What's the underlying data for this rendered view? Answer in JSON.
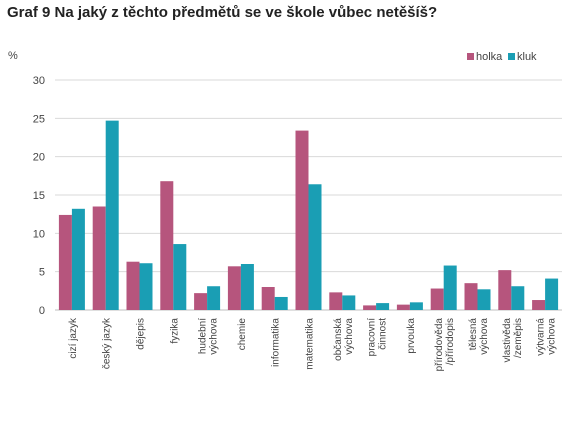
{
  "title": "Graf 9 Na jaký z těchto předmětů se ve škole vůbec netěšíš?",
  "colors": {
    "holka": "#b6557d",
    "kluk": "#1a9eb4",
    "grid": "#d9d9d9",
    "axis": "#bfbfbf"
  },
  "chart_data": {
    "type": "bar",
    "title": "Graf 9 Na jaký z těchto předmětů se ve škole vůbec netěšíš?",
    "ylabel": "%",
    "xlabel": "",
    "ylim": [
      0,
      30
    ],
    "yticks": [
      0,
      5,
      10,
      15,
      20,
      25,
      30
    ],
    "grid": true,
    "legend_position": "top-right",
    "categories": [
      [
        "cizí jazyk"
      ],
      [
        "český jazyk"
      ],
      [
        "dějepis"
      ],
      [
        "fyzika"
      ],
      [
        "hudební",
        "výchova"
      ],
      [
        "chemie"
      ],
      [
        "informatika"
      ],
      [
        "matematika"
      ],
      [
        "občanská",
        "výchova"
      ],
      [
        "pracovní",
        "činnost"
      ],
      [
        "prvouka"
      ],
      [
        "přírodověda",
        "/přírodopis"
      ],
      [
        "tělesná",
        "výchova"
      ],
      [
        "vlastivěda",
        "/zeměpis"
      ],
      [
        "výtvarná",
        "výchova"
      ]
    ],
    "series": [
      {
        "name": "holka",
        "values": [
          12.4,
          13.5,
          6.3,
          16.8,
          2.2,
          5.7,
          3.0,
          23.4,
          2.3,
          0.6,
          0.7,
          2.8,
          3.5,
          5.2,
          1.3
        ]
      },
      {
        "name": "kluk",
        "values": [
          13.2,
          24.7,
          6.1,
          8.6,
          3.1,
          6.0,
          1.7,
          16.4,
          1.9,
          0.9,
          1.0,
          5.8,
          2.7,
          3.1,
          4.1
        ]
      }
    ]
  }
}
